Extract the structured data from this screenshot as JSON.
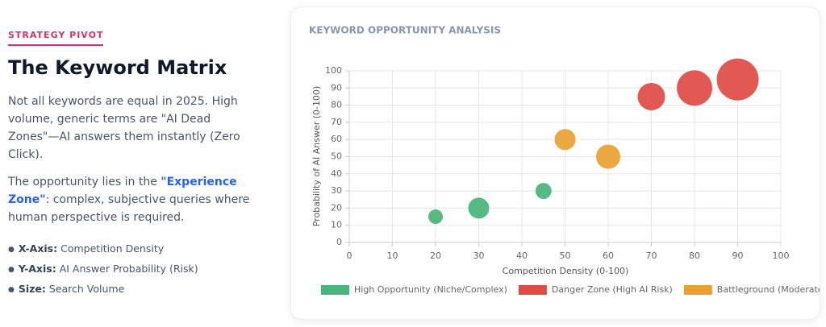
{
  "panel": {
    "eyebrow": "STRATEGY PIVOT",
    "title": "The Keyword Matrix",
    "paragraph1": "Not all keywords are equal in 2025. High volume, generic terms are \"AI Dead Zones\"—AI answers them instantly (Zero Click).",
    "paragraph2": {
      "before": "The opportunity lies in the ",
      "highlight": "\"Experience Zone\"",
      "after": ": complex, subjective queries where human perspective is required."
    },
    "bullets": [
      {
        "label": "X-Axis:",
        "text": "Competition Density"
      },
      {
        "label": "Y-Axis:",
        "text": "AI Answer Probability (Risk)"
      },
      {
        "label": "Size:",
        "text": "Search Volume"
      }
    ]
  },
  "chart_data": {
    "type": "bubble",
    "title": "KEYWORD OPPORTUNITY ANALYSIS",
    "x_label": "Competition Density (0-100)",
    "y_label": "Probability of AI Answer (0-100)",
    "xlim": [
      0,
      100
    ],
    "ylim": [
      0,
      100
    ],
    "xticks": [
      0,
      10,
      20,
      30,
      40,
      50,
      60,
      70,
      80,
      90,
      100
    ],
    "yticks": [
      0,
      10,
      20,
      30,
      40,
      50,
      60,
      70,
      80,
      90,
      100
    ],
    "grid": true,
    "legend": "bottom",
    "series": [
      {
        "name": "High Opportunity (Niche/Complex)",
        "color": "#48b57a",
        "x": [
          20,
          30,
          45
        ],
        "values": [
          15,
          20,
          30
        ],
        "sizes": [
          9,
          13,
          10
        ]
      },
      {
        "name": "Danger Zone (High AI Risk)",
        "color": "#e04b45",
        "x": [
          70,
          80,
          90
        ],
        "values": [
          85,
          90,
          95
        ],
        "sizes": [
          17,
          22,
          26
        ]
      },
      {
        "name": "Battleground (Moderate)",
        "color": "#e9a031",
        "x": [
          50,
          60
        ],
        "values": [
          60,
          50
        ],
        "sizes": [
          13,
          15
        ]
      }
    ]
  }
}
